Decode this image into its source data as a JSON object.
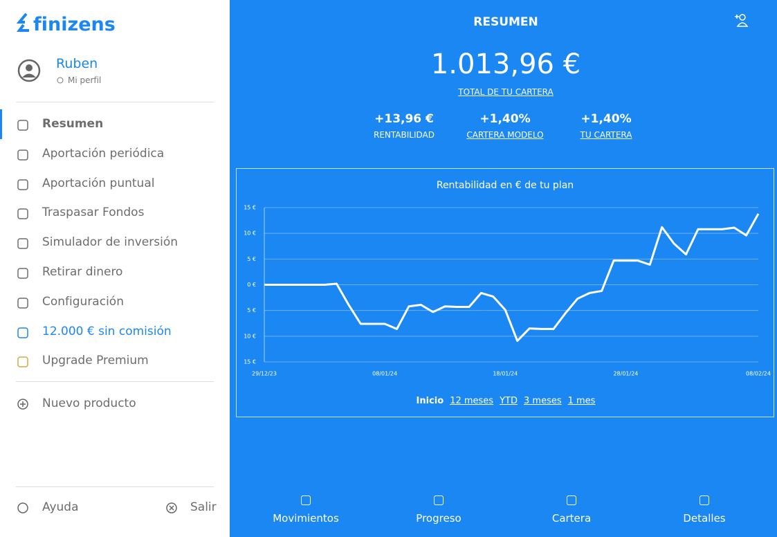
{
  "brand": "finizens",
  "user": {
    "name": "Ruben",
    "profile": "Mi perfil"
  },
  "menu": [
    "Resumen",
    "Aportación periódica",
    "Aportación puntual",
    "Traspasar Fondos",
    "Simulador de inversión",
    "Retirar dinero",
    "Configuración",
    "12.000 € sin comisión",
    "Upgrade Premium"
  ],
  "menu_secondary": [
    "Nuevo producto"
  ],
  "footer": [
    "Ayuda",
    "Salir"
  ],
  "header": {
    "title": "RESUMEN"
  },
  "total": {
    "value": "1.013,96 €",
    "label": "TOTAL DE TU CARTERA"
  },
  "stats": [
    {
      "value": "+13,96 €",
      "label": "RENTABILIDAD"
    },
    {
      "value": "+1,40%",
      "label": "CARTERA MODELO"
    },
    {
      "value": "+1,40%",
      "label": "TU CARTERA"
    }
  ],
  "chart_data": {
    "type": "line",
    "title": "Rentabilidad en € de tu plan",
    "categories": [
      "29/12/23",
      null,
      null,
      null,
      null,
      null,
      null,
      null,
      null,
      null,
      "08/01/24",
      null,
      null,
      null,
      null,
      null,
      null,
      null,
      null,
      null,
      "18/01/24",
      null,
      null,
      null,
      null,
      null,
      null,
      null,
      null,
      null,
      "28/01/24",
      null,
      null,
      null,
      null,
      null,
      null,
      null,
      null,
      null,
      null,
      "08/02/24"
    ],
    "values": [
      0,
      0,
      0,
      0,
      0,
      0,
      0.2,
      -3.9,
      -7.6,
      -7.6,
      -7.6,
      -8.6,
      -4.2,
      -3.9,
      -5.3,
      -4.2,
      -4.3,
      -4.3,
      -1.6,
      -2.3,
      -4.9,
      -10.9,
      -8.5,
      -8.6,
      -8.6,
      -5.5,
      -2.7,
      -1.6,
      -1.2,
      4.7,
      4.7,
      4.7,
      3.9,
      11.2,
      8.0,
      5.9,
      10.8,
      10.8,
      10.8,
      11.1,
      9.6,
      13.8
    ],
    "color": "#ffffff",
    "ylim": [
      -15,
      15
    ],
    "yticks": [
      {
        "value": 15,
        "label": "15 €"
      },
      {
        "value": 10,
        "label": "10 €"
      },
      {
        "value": 5,
        "label": "5 €"
      },
      {
        "value": 0,
        "label": "0 €"
      },
      {
        "value": -5,
        "label": "5 €"
      },
      {
        "value": -10,
        "label": "10 €"
      },
      {
        "value": -15,
        "label": "15 €"
      }
    ],
    "grid": true
  },
  "ranges": [
    "Inicio",
    "12 meses",
    "YTD",
    "3 meses",
    "1 mes"
  ],
  "tabs": [
    "Movimientos",
    "Progreso",
    "Cartera",
    "Detalles"
  ]
}
